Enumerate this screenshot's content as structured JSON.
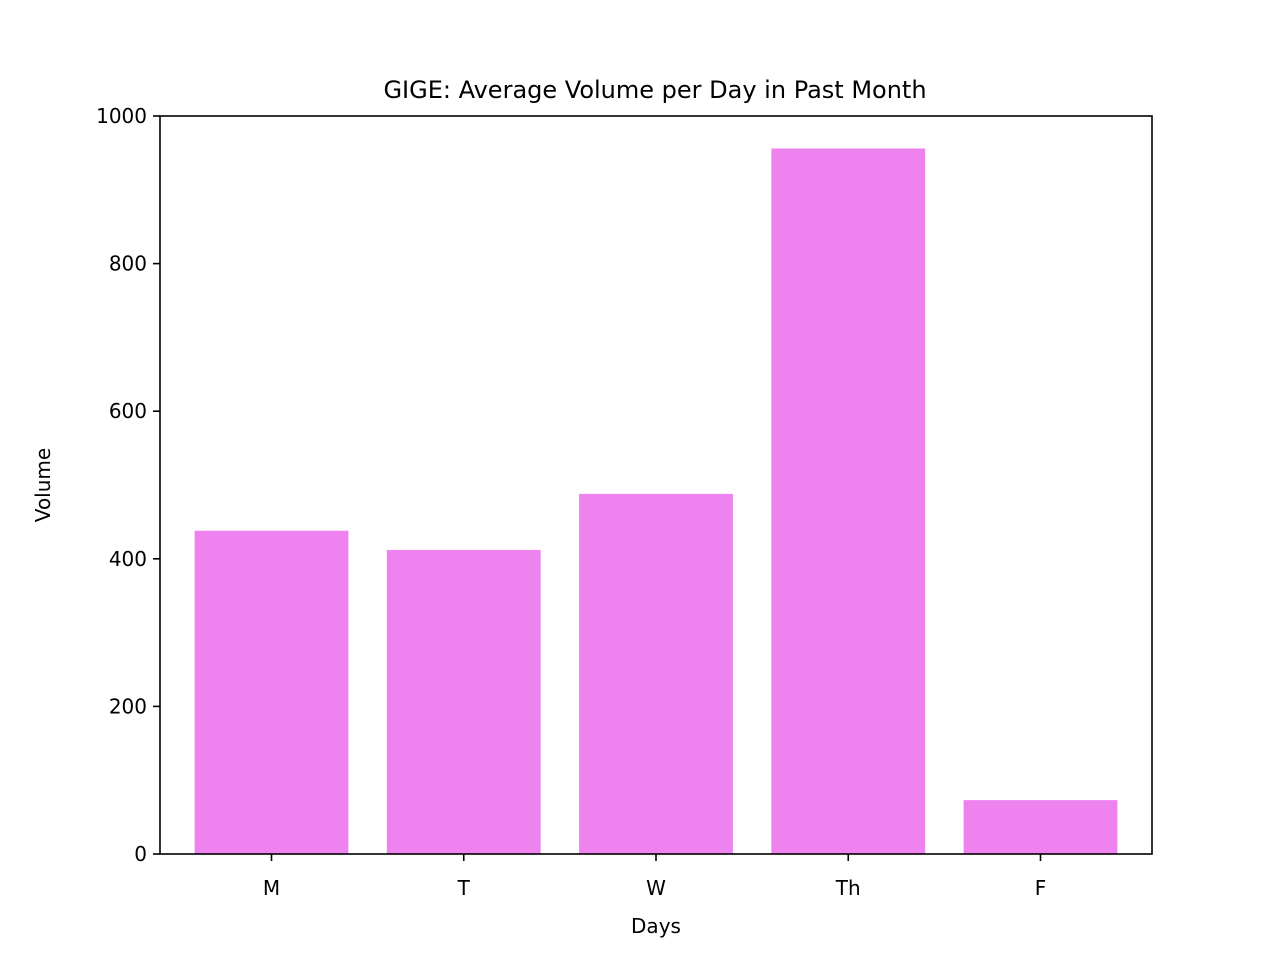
{
  "chart_data": {
    "type": "bar",
    "title": "GIGE: Average Volume per Day in Past Month",
    "xlabel": "Days",
    "ylabel": "Volume",
    "categories": [
      "M",
      "T",
      "W",
      "Th",
      "F"
    ],
    "values": [
      438,
      412,
      488,
      956,
      73
    ],
    "ylim": [
      0,
      1000
    ],
    "yticks": [
      0,
      200,
      400,
      600,
      800,
      1000
    ],
    "ytick_labels": [
      "0",
      "200",
      "400",
      "600",
      "800",
      "1000"
    ],
    "grid": false,
    "legend": "none",
    "bar_color": "#ee82ee"
  }
}
